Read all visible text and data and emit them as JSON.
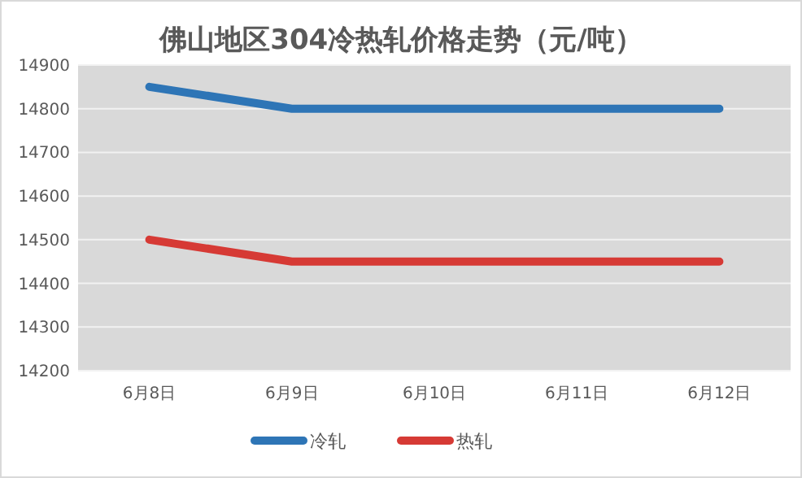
{
  "chart_data": {
    "type": "line",
    "title": "佛山地区304冷热轧价格走势（元/吨）",
    "categories": [
      "6月8日",
      "6月9日",
      "6月10日",
      "6月11日",
      "6月12日"
    ],
    "series": [
      {
        "name": "冷轧",
        "color": "#2e75b6",
        "values": [
          14850,
          14800,
          14800,
          14800,
          14800
        ]
      },
      {
        "name": "热轧",
        "color": "#d63a35",
        "values": [
          14500,
          14450,
          14450,
          14450,
          14450
        ]
      }
    ],
    "ylim": [
      14200,
      14900
    ],
    "yticks": [
      14200,
      14300,
      14400,
      14500,
      14600,
      14700,
      14800,
      14900
    ],
    "grid": "y",
    "legend": "bottom",
    "marker": "none",
    "line_style": "solid"
  }
}
